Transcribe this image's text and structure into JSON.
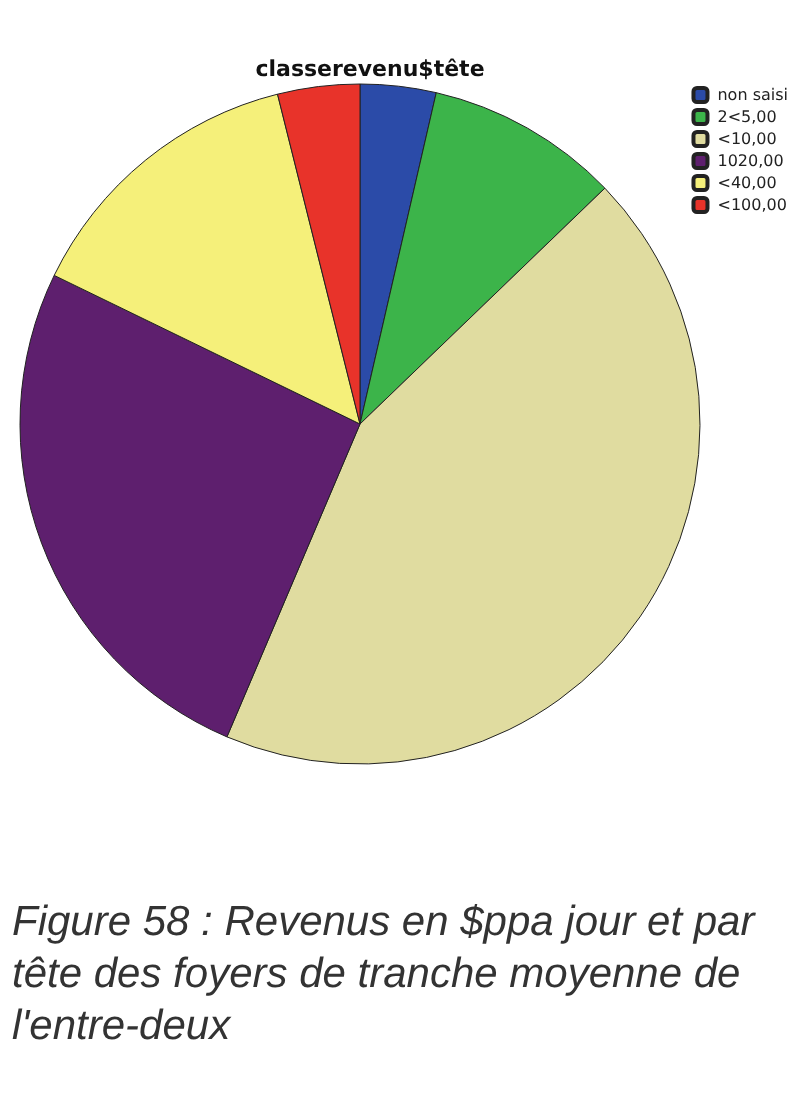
{
  "chart_data": {
    "type": "pie",
    "title": "classerevenu$tête",
    "categories": [
      "non saisi",
      "2<5,00",
      "<10,00",
      "1020,00",
      "<40,00",
      "<100,00"
    ],
    "values": [
      3.6,
      9.2,
      43.6,
      25.8,
      13.9,
      3.9
    ],
    "colors": [
      "#2b4ba8",
      "#3cb44a",
      "#e0dca0",
      "#5e1f6e",
      "#f5f07a",
      "#e8332a"
    ],
    "legend": "top right",
    "annotations": [
      "Figure 58 : Revenus en $ppa jour et par tête des foyers de tranche moyenne de l'entre-deux"
    ]
  }
}
